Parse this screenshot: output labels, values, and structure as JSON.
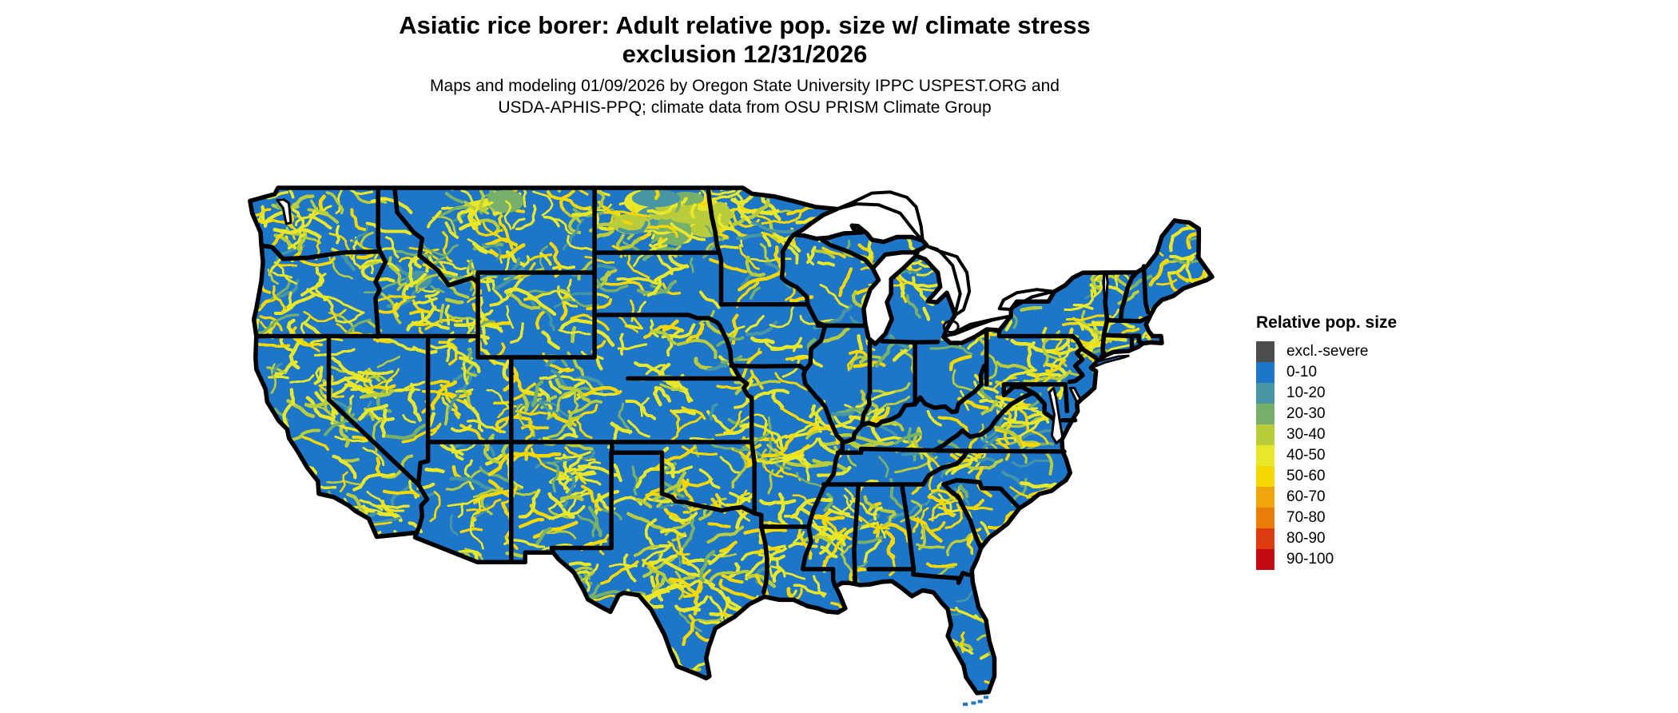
{
  "header": {
    "title_line1": "Asiatic rice borer: Adult relative pop. size w/ climate stress",
    "title_line2": "exclusion 12/31/2026",
    "subtitle_line1": "Maps and modeling 01/09/2026 by Oregon State University IPPC USPEST.ORG and",
    "subtitle_line2": "USDA-APHIS-PPQ; climate data from OSU PRISM Climate Group"
  },
  "legend": {
    "title": "Relative pop. size",
    "entries": [
      {
        "label": "excl.-severe",
        "color": "#4d4d4d"
      },
      {
        "label": "0-10",
        "color": "#1e76c8"
      },
      {
        "label": "10-20",
        "color": "#4796a5"
      },
      {
        "label": "20-30",
        "color": "#77b06b"
      },
      {
        "label": "30-40",
        "color": "#b9cc3c"
      },
      {
        "label": "40-50",
        "color": "#e9e729"
      },
      {
        "label": "50-60",
        "color": "#f5d800"
      },
      {
        "label": "60-70",
        "color": "#f0a60a"
      },
      {
        "label": "70-80",
        "color": "#e87d0a"
      },
      {
        "label": "80-90",
        "color": "#dc3c0e"
      },
      {
        "label": "90-100",
        "color": "#c50a11"
      }
    ]
  },
  "map": {
    "region": "Contiguous United States",
    "base_class": "0-10",
    "base_color": "#1e76c8",
    "border_color": "#000000",
    "water_color": "#ffffff",
    "background_color": "#ffffff"
  }
}
